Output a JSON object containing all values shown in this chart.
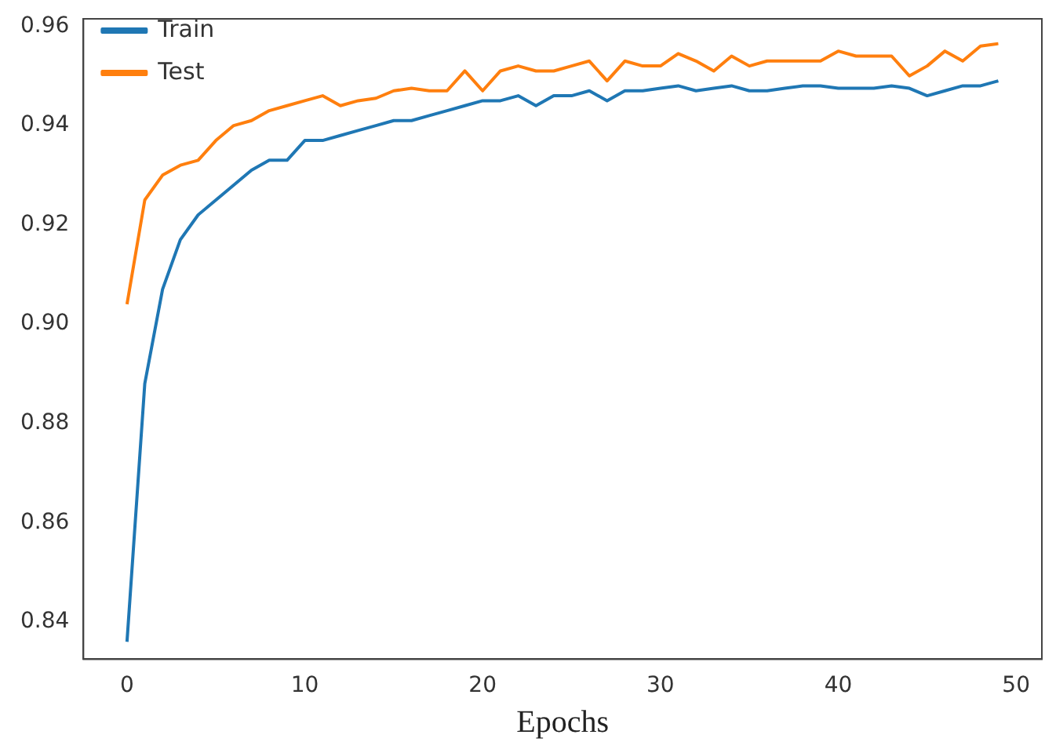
{
  "chart_data": {
    "type": "line",
    "xlabel": "Epochs",
    "x": [
      0,
      1,
      2,
      3,
      4,
      5,
      6,
      7,
      8,
      9,
      10,
      11,
      12,
      13,
      14,
      15,
      16,
      17,
      18,
      19,
      20,
      21,
      22,
      23,
      24,
      25,
      26,
      27,
      28,
      29,
      30,
      31,
      32,
      33,
      34,
      35,
      36,
      37,
      38,
      39,
      40,
      41,
      42,
      43,
      44,
      45,
      46,
      47,
      48,
      49
    ],
    "xlim": [
      -2.45,
      51.45
    ],
    "xticks": [
      0,
      10,
      20,
      30,
      40,
      50
    ],
    "ylim": [
      0.8325,
      0.9615
    ],
    "yticks": [
      {
        "value": 0.84,
        "label": "0.84"
      },
      {
        "value": 0.86,
        "label": "0.86"
      },
      {
        "value": 0.88,
        "label": "0.88"
      },
      {
        "value": 0.9,
        "label": "0.90"
      },
      {
        "value": 0.92,
        "label": "0.92"
      },
      {
        "value": 0.94,
        "label": "0.94"
      },
      {
        "value": 0.96,
        "label": "0.96"
      }
    ],
    "grid": false,
    "legend": "top left",
    "marker": "none",
    "line_style": "solid",
    "series": [
      {
        "name": "Train",
        "color": "#1f77b4",
        "values": [
          0.836,
          0.888,
          0.907,
          0.917,
          0.922,
          0.925,
          0.928,
          0.931,
          0.933,
          0.933,
          0.937,
          0.937,
          0.938,
          0.939,
          0.94,
          0.941,
          0.941,
          0.942,
          0.943,
          0.944,
          0.945,
          0.945,
          0.946,
          0.944,
          0.946,
          0.946,
          0.947,
          0.945,
          0.947,
          0.947,
          0.9475,
          0.948,
          0.947,
          0.9475,
          0.948,
          0.947,
          0.947,
          0.9475,
          0.948,
          0.948,
          0.9475,
          0.9475,
          0.9475,
          0.948,
          0.9475,
          0.946,
          0.947,
          0.948,
          0.948,
          0.949
        ]
      },
      {
        "name": "Test",
        "color": "#ff7f0e",
        "values": [
          0.904,
          0.925,
          0.93,
          0.932,
          0.933,
          0.937,
          0.94,
          0.941,
          0.943,
          0.944,
          0.945,
          0.946,
          0.944,
          0.945,
          0.9455,
          0.947,
          0.9475,
          0.947,
          0.947,
          0.951,
          0.947,
          0.951,
          0.952,
          0.951,
          0.951,
          0.952,
          0.953,
          0.949,
          0.953,
          0.952,
          0.952,
          0.9545,
          0.953,
          0.951,
          0.954,
          0.952,
          0.953,
          0.953,
          0.953,
          0.953,
          0.955,
          0.954,
          0.954,
          0.954,
          0.95,
          0.952,
          0.955,
          0.953,
          0.956,
          0.9565
        ]
      }
    ]
  }
}
